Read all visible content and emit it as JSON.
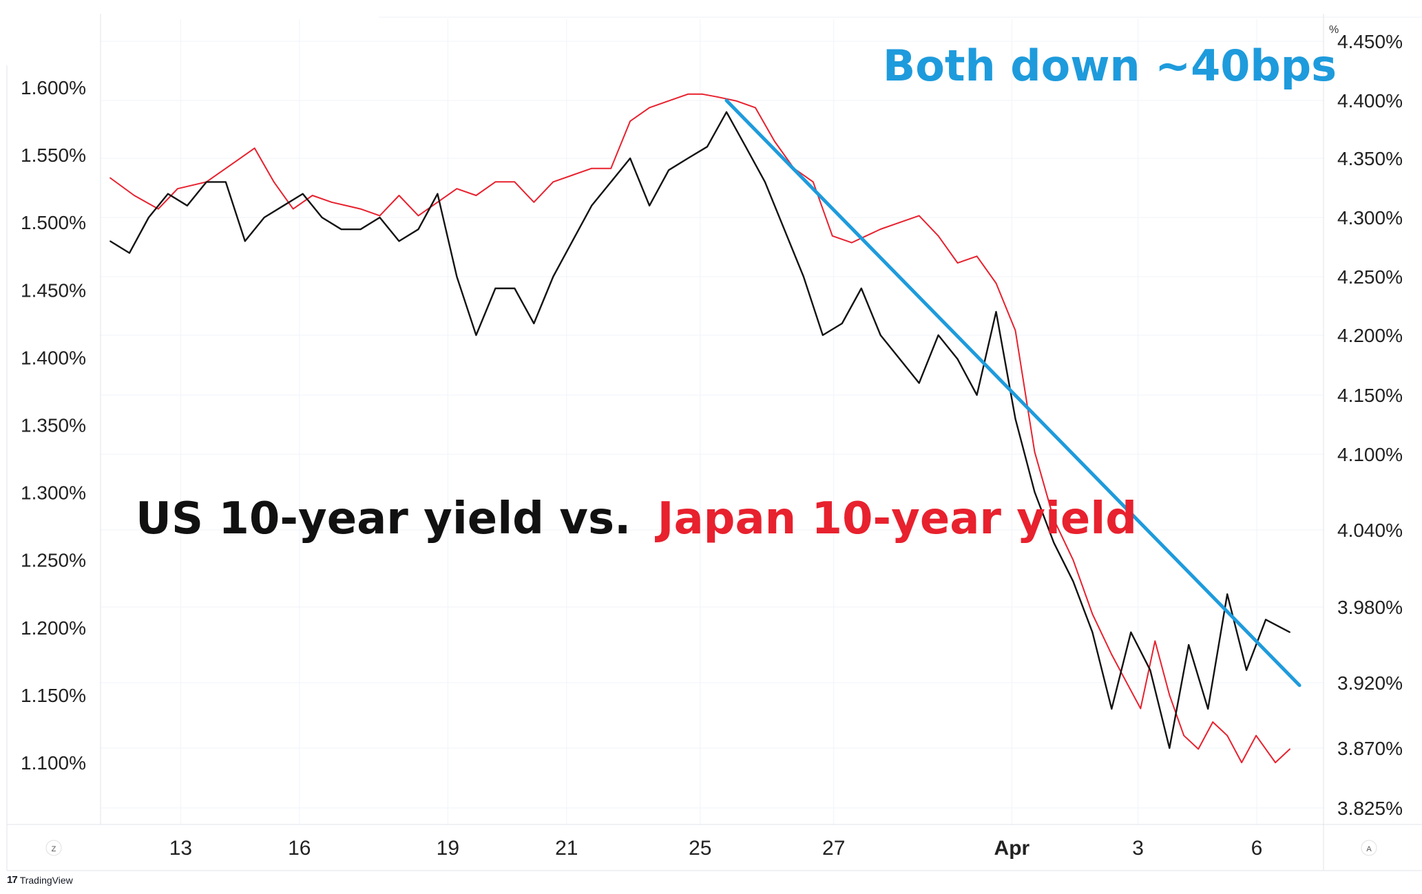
{
  "chart_data": {
    "type": "line",
    "title": "",
    "annotations": {
      "title_prefix": "US 10-year yield vs.",
      "title_suffix": "Japan 10-year yield",
      "callout": "Both down ~40bps"
    },
    "x_ticks": [
      "13",
      "16",
      "19",
      "21",
      "25",
      "27",
      "Apr",
      "3",
      "6"
    ],
    "y_left": {
      "ticks": [
        "1.600%",
        "1.550%",
        "1.500%",
        "1.450%",
        "1.400%",
        "1.350%",
        "1.300%",
        "1.250%",
        "1.200%",
        "1.150%",
        "1.100%"
      ],
      "range": [
        1.07,
        1.62
      ]
    },
    "y_right": {
      "ticks": [
        "4.450%",
        "4.400%",
        "4.350%",
        "4.300%",
        "4.250%",
        "4.200%",
        "4.150%",
        "4.100%",
        "4.040%",
        "3.980%",
        "3.920%",
        "3.870%",
        "3.825%"
      ],
      "unit_label": "%"
    },
    "series": [
      {
        "name": "Japan 10-year yield",
        "color": "#e8212e",
        "axis": "left",
        "x": [
          0.0,
          0.25,
          0.5,
          0.7,
          1.0,
          1.3,
          1.5,
          1.7,
          1.9,
          2.1,
          2.3,
          2.6,
          2.8,
          3.0,
          3.2,
          3.4,
          3.6,
          3.8,
          4.0,
          4.2,
          4.4,
          4.6,
          4.8,
          5.0,
          5.2,
          5.4,
          5.6,
          5.8,
          6.0,
          6.15,
          6.3,
          6.5,
          6.7,
          6.9,
          7.1,
          7.3,
          7.5,
          7.7,
          7.85,
          8.0,
          8.2,
          8.4,
          8.6,
          8.8,
          9.0,
          9.2,
          9.4,
          9.6,
          9.8,
          10.0,
          10.2,
          10.4,
          10.55,
          10.7,
          10.85,
          11.0,
          11.15,
          11.3,
          11.45,
          11.6,
          11.75,
          11.9,
          12.0,
          12.1,
          12.25
        ],
        "values": [
          1.533,
          1.52,
          1.51,
          1.525,
          1.53,
          1.545,
          1.555,
          1.53,
          1.51,
          1.52,
          1.515,
          1.51,
          1.505,
          1.52,
          1.505,
          1.515,
          1.525,
          1.52,
          1.53,
          1.53,
          1.515,
          1.53,
          1.535,
          1.54,
          1.54,
          1.575,
          1.585,
          1.59,
          1.595,
          1.595,
          1.593,
          1.59,
          1.585,
          1.56,
          1.54,
          1.53,
          1.49,
          1.485,
          1.49,
          1.495,
          1.5,
          1.505,
          1.49,
          1.47,
          1.475,
          1.455,
          1.42,
          1.33,
          1.28,
          1.25,
          1.21,
          1.18,
          1.16,
          1.14,
          1.19,
          1.15,
          1.12,
          1.11,
          1.13,
          1.12,
          1.1,
          1.12,
          1.11,
          1.1,
          1.11
        ]
      },
      {
        "name": "US 10-year yield",
        "color": "#131313",
        "axis": "right",
        "x": [
          0.0,
          0.2,
          0.4,
          0.6,
          0.8,
          1.0,
          1.2,
          1.4,
          1.6,
          1.8,
          2.0,
          2.2,
          2.4,
          2.6,
          2.8,
          3.0,
          3.2,
          3.4,
          3.6,
          3.8,
          4.0,
          4.2,
          4.4,
          4.6,
          4.8,
          5.0,
          5.2,
          5.4,
          5.6,
          5.8,
          6.0,
          6.2,
          6.4,
          6.6,
          6.8,
          7.0,
          7.2,
          7.4,
          7.6,
          7.8,
          8.0,
          8.2,
          8.4,
          8.6,
          8.8,
          9.0,
          9.2,
          9.4,
          9.6,
          9.8,
          10.0,
          10.2,
          10.4,
          10.6,
          10.8,
          11.0,
          11.2,
          11.4,
          11.6,
          11.8,
          12.0,
          12.25
        ],
        "values": [
          4.28,
          4.27,
          4.3,
          4.32,
          4.31,
          4.33,
          4.33,
          4.28,
          4.3,
          4.31,
          4.32,
          4.3,
          4.29,
          4.29,
          4.3,
          4.28,
          4.29,
          4.32,
          4.25,
          4.2,
          4.24,
          4.24,
          4.21,
          4.25,
          4.28,
          4.31,
          4.33,
          4.35,
          4.31,
          4.34,
          4.35,
          4.36,
          4.39,
          4.36,
          4.33,
          4.29,
          4.25,
          4.2,
          4.21,
          4.24,
          4.2,
          4.18,
          4.16,
          4.2,
          4.18,
          4.15,
          4.22,
          4.13,
          4.07,
          4.03,
          4.0,
          3.96,
          3.9,
          3.96,
          3.93,
          3.87,
          3.95,
          3.9,
          3.99,
          3.93,
          3.97,
          3.96
        ]
      }
    ],
    "trendline": {
      "color": "#1e9bdc",
      "from": {
        "x": 6.4,
        "y_right": 4.4
      },
      "to": {
        "x": 12.35,
        "y_right": 3.918
      }
    },
    "grid": true,
    "legend": "none"
  },
  "branding": {
    "logo_text": "TradingView",
    "logo_mark": "17"
  },
  "corner_labels": {
    "bottom_left": "Z",
    "bottom_right": "A"
  }
}
